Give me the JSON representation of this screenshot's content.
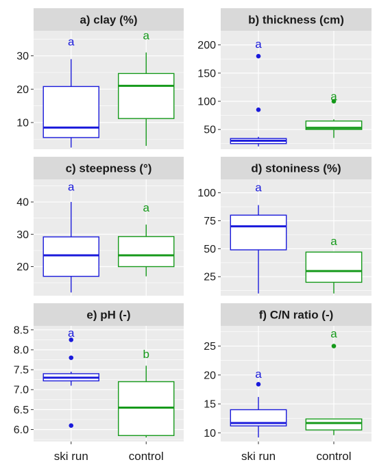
{
  "colors": {
    "ski_run": "#1a1adb",
    "control": "#15991a",
    "panel_bg": "#ebebeb",
    "strip_bg": "#d9d9d9",
    "grid": "#ffffff"
  },
  "chart_data": [
    {
      "type": "boxplot",
      "title": "a) clay (%)",
      "categories": [
        "ski run",
        "control"
      ],
      "ylim": [
        2,
        37.5
      ],
      "yticks": [
        10,
        20,
        30
      ],
      "ytick_labels": [
        "10",
        "20",
        "30"
      ],
      "boxes": [
        {
          "group": "ski run",
          "lower": 2.5,
          "q1": 5.5,
          "median": 8.5,
          "q3": 20.8,
          "upper": 29.0,
          "outliers": [],
          "letter": "a",
          "letter_y": 34.3
        },
        {
          "group": "control",
          "lower": 3.0,
          "q1": 11.2,
          "median": 21.0,
          "q3": 24.7,
          "upper": 31.0,
          "outliers": [],
          "letter": "a",
          "letter_y": 36.2
        }
      ]
    },
    {
      "type": "boxplot",
      "title": "b) thickness (cm)",
      "categories": [
        "ski run",
        "control"
      ],
      "ylim": [
        15,
        225
      ],
      "yticks": [
        50,
        100,
        150,
        200
      ],
      "ytick_labels": [
        "50",
        "100",
        "150",
        "200"
      ],
      "boxes": [
        {
          "group": "ski run",
          "lower": 20,
          "q1": 25,
          "median": 30,
          "q3": 34,
          "upper": 37,
          "outliers": [
            85,
            180
          ],
          "letter": "a",
          "letter_y": 202
        },
        {
          "group": "control",
          "lower": 35,
          "q1": 50,
          "median": 53,
          "q3": 65,
          "upper": 68,
          "outliers": [
            100
          ],
          "letter": "a",
          "letter_y": 109
        }
      ]
    },
    {
      "type": "boxplot",
      "title": "c) steepness (°)",
      "categories": [
        "ski run",
        "control"
      ],
      "ylim": [
        11,
        47
      ],
      "yticks": [
        20,
        30,
        40
      ],
      "ytick_labels": [
        "20",
        "30",
        "40"
      ],
      "boxes": [
        {
          "group": "ski run",
          "lower": 12,
          "q1": 17,
          "median": 23.5,
          "q3": 29.2,
          "upper": 40,
          "outliers": [],
          "letter": "a",
          "letter_y": 44.8
        },
        {
          "group": "control",
          "lower": 17,
          "q1": 20,
          "median": 23.5,
          "q3": 29.3,
          "upper": 33,
          "outliers": [],
          "letter": "a",
          "letter_y": 38.3
        }
      ]
    },
    {
      "type": "boxplot",
      "title": "d) stoniness (%)",
      "categories": [
        "ski run",
        "control"
      ],
      "ylim": [
        8,
        112
      ],
      "yticks": [
        25,
        50,
        75,
        100
      ],
      "ytick_labels": [
        "25",
        "50",
        "75",
        "100"
      ],
      "boxes": [
        {
          "group": "ski run",
          "lower": 10,
          "q1": 49,
          "median": 70,
          "q3": 80,
          "upper": 89,
          "outliers": [],
          "letter": "a",
          "letter_y": 105
        },
        {
          "group": "control",
          "lower": 10,
          "q1": 20,
          "median": 30,
          "q3": 47,
          "upper": 47,
          "outliers": [],
          "letter": "a",
          "letter_y": 57
        }
      ]
    },
    {
      "type": "boxplot",
      "title": "e) pH (-)",
      "categories": [
        "ski run",
        "control"
      ],
      "ylim": [
        5.7,
        8.6
      ],
      "yticks": [
        6.0,
        6.5,
        7.0,
        7.5,
        8.0,
        8.5
      ],
      "ytick_labels": [
        "6.0",
        "6.5",
        "7.0",
        "7.5",
        "8.0",
        "8.5"
      ],
      "boxes": [
        {
          "group": "ski run",
          "lower": 7.1,
          "q1": 7.22,
          "median": 7.3,
          "q3": 7.4,
          "upper": 7.45,
          "outliers": [
            6.1,
            7.8,
            8.25
          ],
          "letter": "a",
          "letter_y": 8.43
        },
        {
          "group": "control",
          "lower": 5.8,
          "q1": 5.85,
          "median": 6.55,
          "q3": 7.2,
          "upper": 7.6,
          "outliers": [],
          "letter": "b",
          "letter_y": 7.9
        }
      ]
    },
    {
      "type": "boxplot",
      "title": "f) C/N ratio (-)",
      "categories": [
        "ski run",
        "control"
      ],
      "ylim": [
        8.5,
        28.5
      ],
      "yticks": [
        10,
        15,
        20,
        25
      ],
      "ytick_labels": [
        "10",
        "15",
        "20",
        "25"
      ],
      "boxes": [
        {
          "group": "ski run",
          "lower": 9.2,
          "q1": 11.2,
          "median": 11.7,
          "q3": 14.0,
          "upper": 16.2,
          "outliers": [
            18.4
          ],
          "letter": "a",
          "letter_y": 20.2
        },
        {
          "group": "control",
          "lower": 9.6,
          "q1": 10.5,
          "median": 11.7,
          "q3": 12.4,
          "upper": 12.4,
          "outliers": [
            25.0
          ],
          "letter": "a",
          "letter_y": 27.2
        }
      ]
    }
  ]
}
